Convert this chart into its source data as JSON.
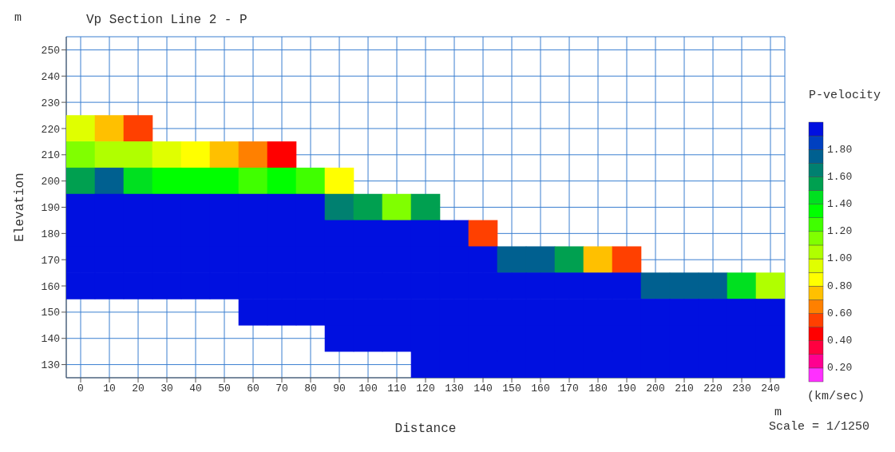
{
  "chart_data": {
    "type": "heatmap",
    "title": "Vp Section Line 2 - P",
    "xlabel": "Distance",
    "ylabel": "Elevation",
    "clabel": "P-velocity",
    "annotations": [
      "m",
      "m",
      "(km/sec)",
      "Scale = 1/1250"
    ],
    "categories": [
      "0",
      "10",
      "20",
      "30",
      "40",
      "50",
      "60",
      "70",
      "80",
      "90",
      "100",
      "110",
      "120",
      "130",
      "140",
      "150",
      "160",
      "170",
      "180",
      "190",
      "200",
      "210",
      "220",
      "230",
      "240"
    ],
    "y_categories": [
      "250",
      "240",
      "230",
      "220",
      "210",
      "200",
      "190",
      "180",
      "170",
      "160",
      "150",
      "140",
      "130"
    ],
    "grid": true,
    "clim": [
      0.1,
      2.0
    ],
    "cticks": [
      {
        "value": 0.2,
        "label": "0.20"
      },
      {
        "value": 0.4,
        "label": "0.40"
      },
      {
        "value": 0.6,
        "label": "0.60"
      },
      {
        "value": 0.8,
        "label": "0.80"
      },
      {
        "value": 1.0,
        "label": "1.00"
      },
      {
        "value": 1.2,
        "label": "1.20"
      },
      {
        "value": 1.4,
        "label": "1.40"
      },
      {
        "value": 1.6,
        "label": "1.60"
      },
      {
        "value": 1.8,
        "label": "1.80"
      }
    ],
    "cells": [
      [
        null,
        null,
        null,
        null,
        null,
        null,
        null,
        null,
        null,
        null,
        null,
        null,
        null,
        null,
        null,
        null,
        null,
        null,
        null,
        null,
        null,
        null,
        null,
        null,
        null
      ],
      [
        null,
        null,
        null,
        null,
        null,
        null,
        null,
        null,
        null,
        null,
        null,
        null,
        null,
        null,
        null,
        null,
        null,
        null,
        null,
        null,
        null,
        null,
        null,
        null,
        null
      ],
      [
        null,
        null,
        null,
        null,
        null,
        null,
        null,
        null,
        null,
        null,
        null,
        null,
        null,
        null,
        null,
        null,
        null,
        null,
        null,
        null,
        null,
        null,
        null,
        null,
        null
      ],
      [
        0.9,
        0.7,
        0.5,
        null,
        null,
        null,
        null,
        null,
        null,
        null,
        null,
        null,
        null,
        null,
        null,
        null,
        null,
        null,
        null,
        null,
        null,
        null,
        null,
        null,
        null
      ],
      [
        1.1,
        1.0,
        1.0,
        0.9,
        0.8,
        0.7,
        0.6,
        0.4,
        null,
        null,
        null,
        null,
        null,
        null,
        null,
        null,
        null,
        null,
        null,
        null,
        null,
        null,
        null,
        null,
        null
      ],
      [
        1.5,
        1.7,
        1.4,
        1.3,
        1.3,
        1.3,
        1.2,
        1.3,
        1.2,
        0.8,
        null,
        null,
        null,
        null,
        null,
        null,
        null,
        null,
        null,
        null,
        null,
        null,
        null,
        null,
        null
      ],
      [
        1.9,
        1.9,
        1.9,
        1.9,
        1.9,
        1.9,
        1.9,
        1.9,
        1.9,
        1.6,
        1.5,
        1.1,
        1.5,
        null,
        null,
        null,
        null,
        null,
        null,
        null,
        null,
        null,
        null,
        null,
        null
      ],
      [
        1.9,
        1.9,
        1.9,
        1.9,
        1.9,
        1.9,
        1.9,
        1.9,
        1.9,
        1.9,
        1.9,
        1.9,
        1.9,
        1.9,
        0.5,
        null,
        null,
        null,
        null,
        null,
        null,
        null,
        null,
        null,
        null
      ],
      [
        1.9,
        1.9,
        1.9,
        1.9,
        1.9,
        1.9,
        1.9,
        1.9,
        1.9,
        1.9,
        1.9,
        1.9,
        1.9,
        1.9,
        1.9,
        1.7,
        1.7,
        1.5,
        0.7,
        0.5,
        null,
        null,
        null,
        null,
        null
      ],
      [
        1.9,
        1.9,
        1.9,
        1.9,
        1.9,
        1.9,
        1.9,
        1.9,
        1.9,
        1.9,
        1.9,
        1.9,
        1.9,
        1.9,
        1.9,
        1.9,
        1.9,
        1.9,
        1.9,
        1.9,
        1.7,
        1.7,
        1.7,
        1.4,
        1.0
      ],
      [
        null,
        null,
        null,
        null,
        null,
        null,
        1.9,
        1.9,
        1.9,
        1.9,
        1.9,
        1.9,
        1.9,
        1.9,
        1.9,
        1.9,
        1.9,
        1.9,
        1.9,
        1.9,
        1.9,
        1.9,
        1.9,
        1.9,
        1.9
      ],
      [
        null,
        null,
        null,
        null,
        null,
        null,
        null,
        null,
        null,
        1.9,
        1.9,
        1.9,
        1.9,
        1.9,
        1.9,
        1.9,
        1.9,
        1.9,
        1.9,
        1.9,
        1.9,
        1.9,
        1.9,
        1.9,
        1.9
      ],
      [
        null,
        null,
        null,
        null,
        null,
        null,
        null,
        null,
        null,
        null,
        null,
        null,
        1.9,
        1.9,
        1.9,
        1.9,
        1.9,
        1.9,
        1.9,
        1.9,
        1.9,
        1.9,
        1.9,
        1.9,
        1.9
      ]
    ]
  }
}
